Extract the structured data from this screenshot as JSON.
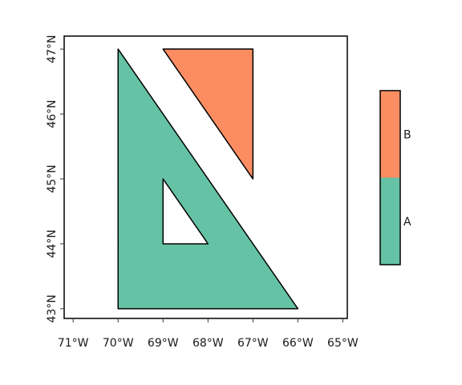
{
  "chart_data": {
    "type": "map",
    "crs": "lon/lat",
    "xlim": [
      -71.2,
      -64.9
    ],
    "ylim": [
      42.85,
      47.2
    ],
    "x_ticks": [
      {
        "value": -71,
        "label": "71°W"
      },
      {
        "value": -70,
        "label": "70°W"
      },
      {
        "value": -69,
        "label": "69°W"
      },
      {
        "value": -68,
        "label": "68°W"
      },
      {
        "value": -67,
        "label": "67°W"
      },
      {
        "value": -66,
        "label": "66°W"
      },
      {
        "value": -65,
        "label": "65°W"
      }
    ],
    "y_ticks": [
      {
        "value": 43,
        "label": "43°N"
      },
      {
        "value": 44,
        "label": "44°N"
      },
      {
        "value": 45,
        "label": "45°N"
      },
      {
        "value": 46,
        "label": "46°N"
      },
      {
        "value": 47,
        "label": "47°N"
      }
    ],
    "grid": false,
    "legend_position": "right",
    "polygons": [
      {
        "category": "A",
        "color": "#66c2a5",
        "exterior": [
          [
            -70,
            43
          ],
          [
            -66,
            43
          ],
          [
            -70,
            47
          ],
          [
            -70,
            43
          ]
        ],
        "holes": [
          [
            [
              -69,
              44
            ],
            [
              -68,
              44
            ],
            [
              -69,
              45
            ],
            [
              -69,
              44
            ]
          ]
        ]
      },
      {
        "category": "B",
        "color": "#fc8d62",
        "exterior": [
          [
            -69,
            47
          ],
          [
            -67,
            47
          ],
          [
            -67,
            45
          ],
          [
            -69,
            47
          ]
        ],
        "holes": []
      }
    ],
    "legend": [
      {
        "label": "A",
        "color": "#66c2a5"
      },
      {
        "label": "B",
        "color": "#fc8d62"
      }
    ]
  }
}
